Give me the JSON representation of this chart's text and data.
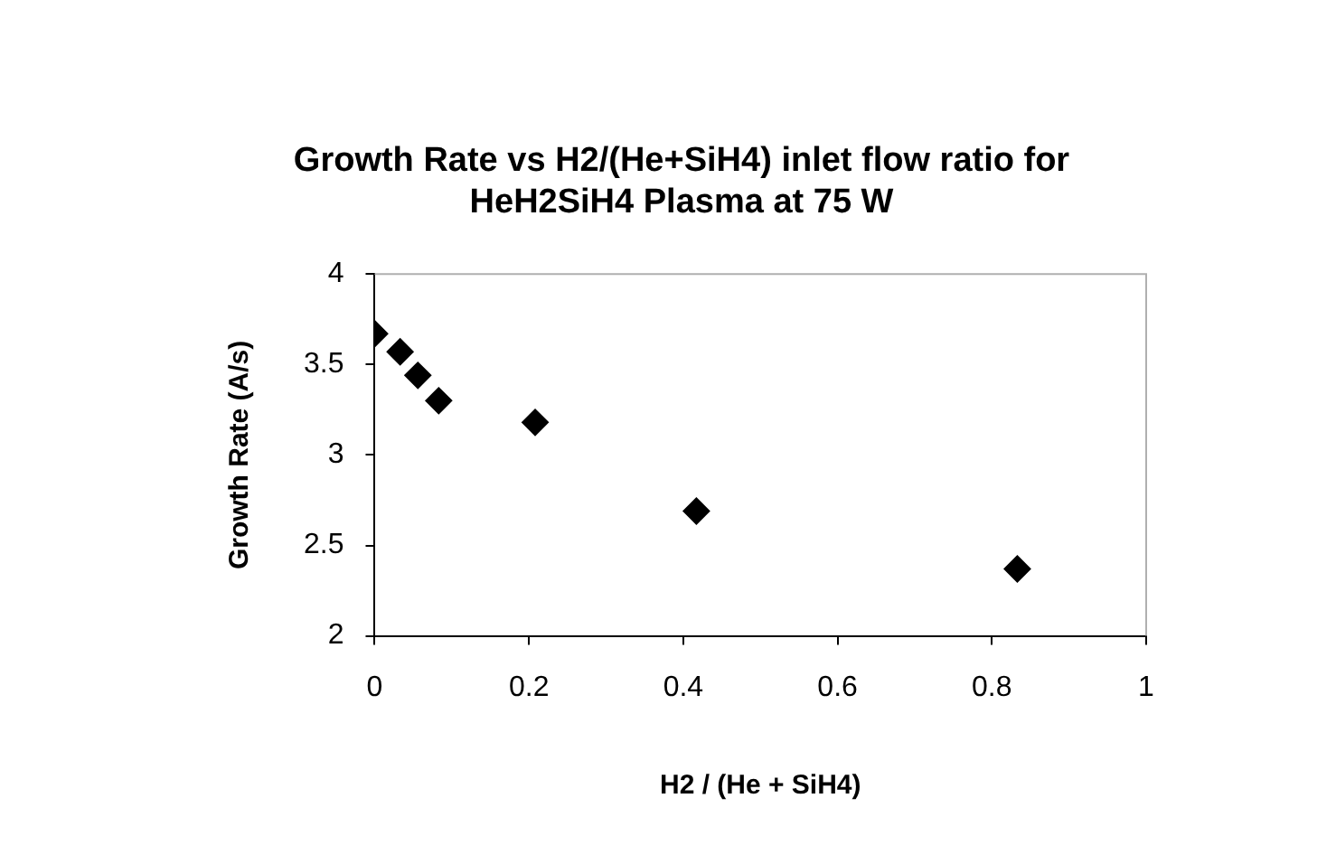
{
  "chart_data": {
    "type": "scatter",
    "title": "Growth Rate vs H2/(He+SiH4) inlet flow ratio for HeH2SiH4 Plasma at 75 W",
    "xlabel": "H2 / (He + SiH4)",
    "ylabel": "Growth Rate (A/s)",
    "x": [
      0,
      0.033,
      0.056,
      0.083,
      0.208,
      0.417,
      0.833
    ],
    "series": [
      {
        "color": "#000000",
        "values": [
          3.67,
          3.57,
          3.44,
          3.3,
          3.18,
          2.69,
          2.37
        ]
      }
    ],
    "xlim": [
      0,
      1
    ],
    "xticks": [
      0,
      0.2,
      0.4,
      0.6,
      0.8,
      1
    ],
    "ylim": [
      2,
      4
    ],
    "yticks": [
      2,
      2.5,
      3,
      3.5,
      4
    ],
    "grid": false,
    "legend": false,
    "marker": "diamond"
  }
}
